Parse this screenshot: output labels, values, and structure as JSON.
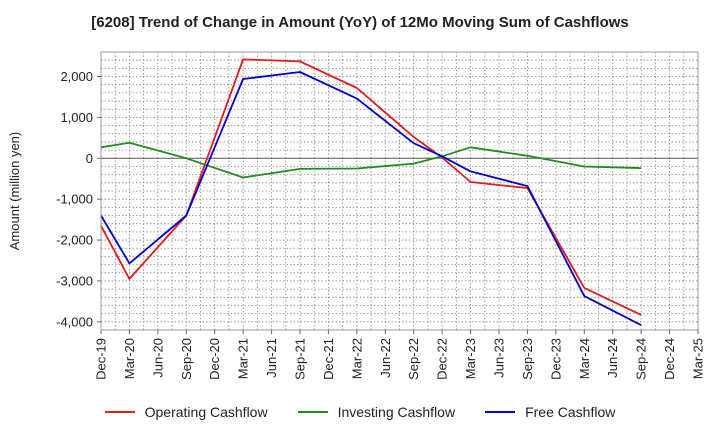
{
  "chart_data": {
    "type": "line",
    "title": "[6208]  Trend of Change in Amount (YoY) of 12Mo Moving Sum of Cashflows",
    "xlabel": "",
    "ylabel": "Amount (million yen)",
    "ylim": [
      -4200,
      2600
    ],
    "yticks": [
      -4000,
      -3000,
      -2000,
      -1000,
      0,
      1000,
      2000
    ],
    "ytick_labels": [
      "-4,000",
      "-3,000",
      "-2,000",
      "-1,000",
      "0",
      "1,000",
      "2,000"
    ],
    "categories": [
      "Dec-19",
      "Mar-20",
      "Jun-20",
      "Sep-20",
      "Dec-20",
      "Mar-21",
      "Jun-21",
      "Sep-21",
      "Dec-21",
      "Mar-22",
      "Jun-22",
      "Sep-22",
      "Dec-22",
      "Mar-23",
      "Jun-23",
      "Sep-23",
      "Dec-23",
      "Mar-24",
      "Jun-24",
      "Sep-24",
      "Dec-24",
      "Mar-25"
    ],
    "grid": true,
    "legend_position": "bottom",
    "series": [
      {
        "name": "Operating Cashflow",
        "color": "#e41a1c",
        "points": [
          [
            0,
            -1650
          ],
          [
            1,
            -2950
          ],
          [
            3,
            -1400
          ],
          [
            5,
            2420
          ],
          [
            7,
            2370
          ],
          [
            9,
            1720
          ],
          [
            11,
            520
          ],
          [
            12,
            20
          ],
          [
            13,
            -580
          ],
          [
            15,
            -730
          ],
          [
            17,
            -3170
          ],
          [
            19,
            -3830
          ]
        ]
      },
      {
        "name": "Investing Cashflow",
        "color": "#228b22",
        "points": [
          [
            0,
            270
          ],
          [
            1,
            380
          ],
          [
            3,
            0
          ],
          [
            5,
            -470
          ],
          [
            7,
            -260
          ],
          [
            9,
            -250
          ],
          [
            11,
            -130
          ],
          [
            12,
            50
          ],
          [
            13,
            270
          ],
          [
            15,
            60
          ],
          [
            17,
            -200
          ],
          [
            19,
            -240
          ]
        ]
      },
      {
        "name": "Free Cashflow",
        "color": "#0000cd",
        "points": [
          [
            0,
            -1400
          ],
          [
            1,
            -2570
          ],
          [
            3,
            -1400
          ],
          [
            5,
            1940
          ],
          [
            7,
            2110
          ],
          [
            9,
            1460
          ],
          [
            11,
            370
          ],
          [
            12,
            50
          ],
          [
            13,
            -320
          ],
          [
            15,
            -680
          ],
          [
            17,
            -3370
          ],
          [
            19,
            -4080
          ]
        ]
      }
    ]
  }
}
